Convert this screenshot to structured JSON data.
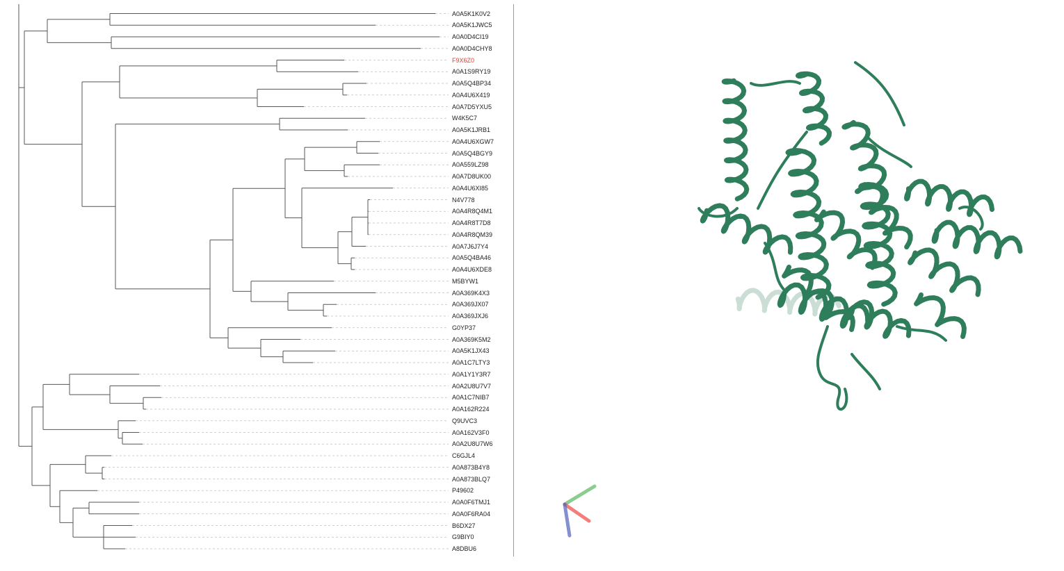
{
  "tree": {
    "highlight_color": "#e53935",
    "branch_color": "#555555",
    "guide_color": "#bdbdbd",
    "leaves": [
      {
        "label": "A0A5K1K0V2"
      },
      {
        "label": "A0A5K1JWC5"
      },
      {
        "label": "A0A0D4CI19"
      },
      {
        "label": "A0A0D4CHY8"
      },
      {
        "label": "F9X6Z0",
        "highlighted": true
      },
      {
        "label": "A0A1S9RY19"
      },
      {
        "label": "A0A5Q4BP34"
      },
      {
        "label": "A0A4U6X419"
      },
      {
        "label": "A0A7D5YXU5"
      },
      {
        "label": "W4K5C7"
      },
      {
        "label": "A0A5K1JRB1"
      },
      {
        "label": "A0A4U6XGW7"
      },
      {
        "label": "A0A5Q4BGY9"
      },
      {
        "label": "A0A559LZ98"
      },
      {
        "label": "A0A7D8UK00"
      },
      {
        "label": "A0A4U6XI85"
      },
      {
        "label": "N4V778"
      },
      {
        "label": "A0A4R8Q4M1"
      },
      {
        "label": "A0A4R8T7D8"
      },
      {
        "label": "A0A4R8QM39"
      },
      {
        "label": "A0A7J6J7Y4"
      },
      {
        "label": "A0A5Q4BA46"
      },
      {
        "label": "A0A4U6XDE8"
      },
      {
        "label": "M5BYW1"
      },
      {
        "label": "A0A369K4X3"
      },
      {
        "label": "A0A369JX07"
      },
      {
        "label": "A0A369JXJ6"
      },
      {
        "label": "G0YP37"
      },
      {
        "label": "A0A369K5M2"
      },
      {
        "label": "A0A5K1JX43"
      },
      {
        "label": "A0A1C7LTY3"
      },
      {
        "label": "A0A1Y1Y3R7"
      },
      {
        "label": "A0A2U8U7V7"
      },
      {
        "label": "A0A1C7NIB7"
      },
      {
        "label": "A0A162R224"
      },
      {
        "label": "Q9UVC3"
      },
      {
        "label": "A0A162V3F0"
      },
      {
        "label": "A0A2U8U7W6"
      },
      {
        "label": "C6GJL4"
      },
      {
        "label": "A0A873B4Y8"
      },
      {
        "label": "A0A873BLQ7"
      },
      {
        "label": "P49602"
      },
      {
        "label": "A0A0F6TMJ1"
      },
      {
        "label": "A0A0F6RA04"
      },
      {
        "label": "B6DX27"
      },
      {
        "label": "G9BIY0"
      },
      {
        "label": "A8DBU6"
      }
    ]
  },
  "viewer": {
    "protein_color": "#2e7d5b",
    "axis_colors": {
      "x": "#ef5350",
      "y": "#66bb6a",
      "z": "#5c6bc0"
    }
  }
}
